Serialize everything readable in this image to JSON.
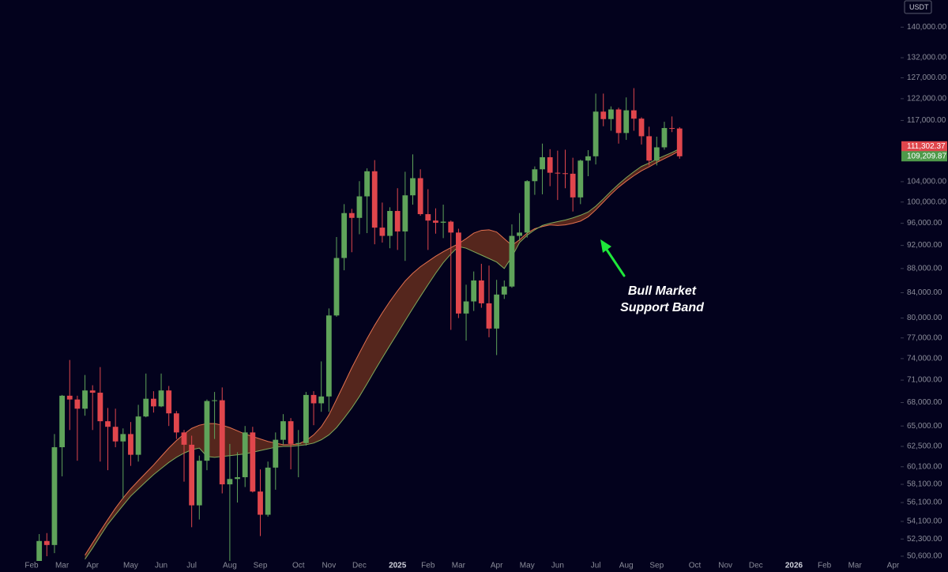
{
  "chart_data": {
    "type": "candlestick",
    "currency": "USDT",
    "annotation": [
      "Bull Market",
      "Support Band"
    ],
    "log_scale": true,
    "grid": false,
    "up_color": "#5fa35a",
    "down_color": "#e0464c",
    "band_fill": "#5e2a1e",
    "categories": [
      "Feb",
      null,
      null,
      null,
      "Mar",
      null,
      null,
      null,
      "Apr",
      null,
      null,
      null,
      null,
      "May",
      null,
      null,
      null,
      "Jun",
      null,
      null,
      null,
      "Jul",
      null,
      null,
      null,
      null,
      "Aug",
      null,
      null,
      null,
      "Sep",
      null,
      null,
      null,
      null,
      "Oct",
      null,
      null,
      null,
      "Nov",
      null,
      null,
      null,
      "Dec",
      null,
      null,
      null,
      null,
      "2025",
      null,
      null,
      null,
      "Feb",
      null,
      null,
      null,
      "Mar",
      null,
      null,
      null,
      null,
      "Apr",
      null,
      null,
      null,
      "May",
      null,
      null,
      null,
      "Jun",
      null,
      null,
      null,
      null,
      "Jul",
      null,
      null,
      null,
      "Aug",
      null,
      null,
      null,
      "Sep",
      null,
      null,
      null,
      null,
      "Oct",
      null,
      null,
      null,
      "Nov",
      null,
      null,
      null,
      "Dec",
      null,
      null,
      null,
      null,
      "2026",
      null,
      null,
      null,
      "Feb",
      null,
      null,
      null,
      "Mar",
      null,
      null,
      null,
      null,
      "Apr"
    ],
    "open": [
      null,
      48300,
      52100,
      51700,
      62400,
      68900,
      68400,
      67200,
      69600,
      69300,
      65600,
      64900,
      63100,
      64000,
      61500,
      66200,
      68500,
      67500,
      69600,
      66600,
      64200,
      62700,
      55800,
      60800,
      68200,
      68300,
      58100,
      58700,
      58900,
      64200,
      57300,
      54800,
      60000,
      63300,
      65600,
      62800,
      62900,
      69000,
      67900,
      68800,
      80400,
      89800,
      97900,
      97000,
      101100,
      106100,
      95200,
      93700,
      98300,
      94500,
      101300,
      104700,
      97700,
      96500,
      96100,
      96300,
      94300,
      80700,
      82600,
      86000,
      82300,
      78400,
      83700,
      85000,
      93700,
      94300,
      104100,
      106500,
      109000,
      105800,
      105700,
      105600,
      100900,
      108300,
      109200,
      119000,
      117300,
      119500,
      114200,
      119300,
      117400,
      113500,
      108300,
      111100,
      115300,
      115200,
      null,
      null,
      null,
      null,
      null,
      null,
      null,
      null,
      null,
      null,
      null,
      null,
      null,
      null,
      null,
      null,
      null,
      null,
      null,
      null,
      null,
      null,
      null,
      null,
      null,
      null,
      null,
      null
    ],
    "high": [
      null,
      52800,
      52900,
      64000,
      69000,
      73800,
      68900,
      71700,
      70300,
      72800,
      67300,
      67200,
      64700,
      65500,
      67700,
      71900,
      69500,
      71900,
      70200,
      66900,
      64500,
      63800,
      61400,
      68400,
      69400,
      70000,
      62800,
      61800,
      65000,
      64900,
      59800,
      60700,
      64200,
      66500,
      66000,
      64500,
      69400,
      69500,
      73600,
      81500,
      93500,
      99600,
      98700,
      104100,
      106700,
      108400,
      99900,
      99000,
      102700,
      106000,
      109600,
      106500,
      102500,
      98800,
      99500,
      96500,
      95000,
      85300,
      87500,
      88800,
      88500,
      86100,
      86000,
      95800,
      97900,
      104300,
      107100,
      111900,
      110700,
      110400,
      110600,
      108900,
      108500,
      110500,
      123200,
      123200,
      120200,
      119900,
      122300,
      124500,
      117700,
      115600,
      113400,
      116700,
      117900,
      115500,
      null,
      null,
      null,
      null,
      null,
      null,
      null,
      null,
      null,
      null,
      null,
      null,
      null,
      null,
      null,
      null,
      null,
      null,
      null,
      null,
      null,
      null,
      null,
      null,
      null,
      null,
      null,
      null
    ],
    "low": [
      null,
      47700,
      50600,
      50900,
      59000,
      64500,
      60800,
      66300,
      64500,
      60700,
      59700,
      62400,
      56500,
      60200,
      60700,
      66100,
      66700,
      67400,
      65000,
      63400,
      58400,
      53500,
      54300,
      59700,
      63400,
      57100,
      49000,
      56100,
      57800,
      57200,
      52600,
      54600,
      57500,
      62700,
      59800,
      58900,
      62600,
      65100,
      66800,
      66800,
      80200,
      87700,
      90800,
      94000,
      94200,
      92200,
      92500,
      91500,
      91200,
      89300,
      99500,
      97400,
      91200,
      94100,
      93300,
      78200,
      80000,
      76600,
      81100,
      81600,
      77100,
      74500,
      83000,
      84800,
      92800,
      93400,
      101400,
      101500,
      103100,
      100400,
      102700,
      98200,
      99600,
      105100,
      107500,
      115700,
      114700,
      111900,
      112700,
      114700,
      111700,
      107300,
      107300,
      110600,
      114400,
      108700,
      null,
      null,
      null,
      null,
      null,
      null,
      null,
      null,
      null,
      null,
      null,
      null,
      null,
      null,
      null,
      null,
      null,
      null,
      null,
      null,
      null,
      null,
      null,
      null,
      null,
      null,
      null,
      null
    ],
    "close": [
      null,
      52100,
      51700,
      62400,
      68900,
      68400,
      67200,
      69600,
      69300,
      65600,
      64900,
      63100,
      64000,
      61500,
      66200,
      68500,
      67500,
      69600,
      66600,
      64200,
      62700,
      55800,
      60800,
      68200,
      68300,
      58100,
      58700,
      58900,
      64200,
      57300,
      54800,
      60000,
      63300,
      65600,
      62800,
      62900,
      69000,
      67900,
      68800,
      80400,
      89800,
      97900,
      97000,
      101100,
      106100,
      95200,
      93700,
      98300,
      94500,
      101300,
      104700,
      97700,
      96500,
      96100,
      96300,
      94300,
      80700,
      82600,
      86000,
      82300,
      78400,
      83700,
      85000,
      93700,
      94300,
      104100,
      106500,
      109000,
      105800,
      105700,
      105600,
      100900,
      108300,
      109200,
      119000,
      117300,
      119500,
      114200,
      119300,
      117400,
      113500,
      108300,
      111100,
      115300,
      115200,
      109200,
      null,
      null,
      null,
      null,
      null,
      null,
      null,
      null,
      null,
      null,
      null,
      null,
      null,
      null,
      null,
      null,
      null,
      null,
      null,
      null,
      null,
      null,
      null,
      null,
      null,
      null,
      null,
      null
    ],
    "bands": [
      {
        "color": "#e2704f",
        "values": [
          null,
          null,
          null,
          null,
          null,
          null,
          null,
          50700,
          51900,
          53100,
          54300,
          55500,
          56600,
          57600,
          58500,
          59400,
          60300,
          61300,
          62300,
          63200,
          64000,
          64700,
          65100,
          65300,
          65300,
          65100,
          64800,
          64400,
          64000,
          63700,
          63400,
          63100,
          62900,
          62700,
          62700,
          62800,
          63200,
          63900,
          64900,
          66400,
          68400,
          70500,
          72700,
          74800,
          76900,
          78900,
          80800,
          82600,
          84300,
          85900,
          87200,
          88300,
          89200,
          90100,
          90900,
          91600,
          92300,
          93200,
          94200,
          94700,
          94800,
          94400,
          93200,
          92000,
          93000,
          94200,
          95000,
          95400,
          95700,
          95600,
          95700,
          96000,
          96400,
          97200,
          98500,
          100000,
          101500,
          102900,
          104100,
          105200,
          106200,
          107000,
          107900,
          108700,
          109500,
          110400,
          null,
          null,
          null,
          null,
          null,
          null,
          null,
          null,
          null,
          null,
          null,
          null,
          null,
          null,
          null,
          null,
          null,
          null,
          null,
          null,
          null,
          null,
          null,
          null,
          null,
          null,
          null,
          null
        ]
      },
      {
        "color": "#7fa85a",
        "values": [
          null,
          null,
          null,
          null,
          null,
          null,
          null,
          50300,
          51400,
          52600,
          53800,
          54800,
          55800,
          56800,
          57600,
          58400,
          59200,
          59900,
          60600,
          61200,
          61700,
          62100,
          62300,
          61300,
          61200,
          61300,
          61400,
          61500,
          61600,
          61800,
          62000,
          62200,
          62400,
          62500,
          62500,
          62600,
          62700,
          62900,
          63300,
          63900,
          64800,
          66000,
          67300,
          68800,
          70500,
          72300,
          74100,
          75900,
          77700,
          79600,
          81500,
          83400,
          85300,
          87200,
          89000,
          90500,
          91800,
          91500,
          90900,
          90300,
          89700,
          89100,
          88000,
          90000,
          92500,
          93800,
          94800,
          95600,
          96000,
          96300,
          96600,
          97000,
          97500,
          98100,
          99200,
          100600,
          102100,
          103500,
          104800,
          106000,
          107100,
          107800,
          108600,
          109300,
          110000,
          110800,
          null,
          null,
          null,
          null,
          null,
          null,
          null,
          null,
          null,
          null,
          null,
          null,
          null,
          null,
          null,
          null,
          null,
          null,
          null,
          null,
          null,
          null,
          null,
          null,
          null,
          null,
          null,
          null
        ]
      }
    ],
    "price_tags": [
      {
        "value": 111302.37,
        "label": "111,302.37",
        "color": "#e0464c"
      },
      {
        "value": 109209.87,
        "label": "109,209.87",
        "color": "#4e9a4a"
      }
    ],
    "ylim": [
      50140,
      147500
    ],
    "yticks": [
      {
        "value": 140000,
        "label": "140,000.00"
      },
      {
        "value": 132000,
        "label": "132,000.00"
      },
      {
        "value": 127000,
        "label": "127,000.00"
      },
      {
        "value": 122000,
        "label": "122,000.00"
      },
      {
        "value": 117000,
        "label": "117,000.00"
      },
      {
        "value": 104000,
        "label": "104,000.00"
      },
      {
        "value": 100000,
        "label": "100,000.00"
      },
      {
        "value": 96000,
        "label": "96,000.00"
      },
      {
        "value": 92000,
        "label": "92,000.00"
      },
      {
        "value": 88000,
        "label": "88,000.00"
      },
      {
        "value": 84000,
        "label": "84,000.00"
      },
      {
        "value": 80000,
        "label": "80,000.00"
      },
      {
        "value": 77000,
        "label": "77,000.00"
      },
      {
        "value": 74000,
        "label": "74,000.00"
      },
      {
        "value": 71000,
        "label": "71,000.00"
      },
      {
        "value": 68000,
        "label": "68,000.00"
      },
      {
        "value": 65000,
        "label": "65,000.00"
      },
      {
        "value": 62500,
        "label": "62,500.00"
      },
      {
        "value": 60100,
        "label": "60,100.00"
      },
      {
        "value": 58100,
        "label": "58,100.00"
      },
      {
        "value": 56100,
        "label": "56,100.00"
      },
      {
        "value": 54100,
        "label": "54,100.00"
      },
      {
        "value": 52300,
        "label": "52,300.00"
      },
      {
        "value": 50600,
        "label": "50,600.00"
      }
    ]
  }
}
